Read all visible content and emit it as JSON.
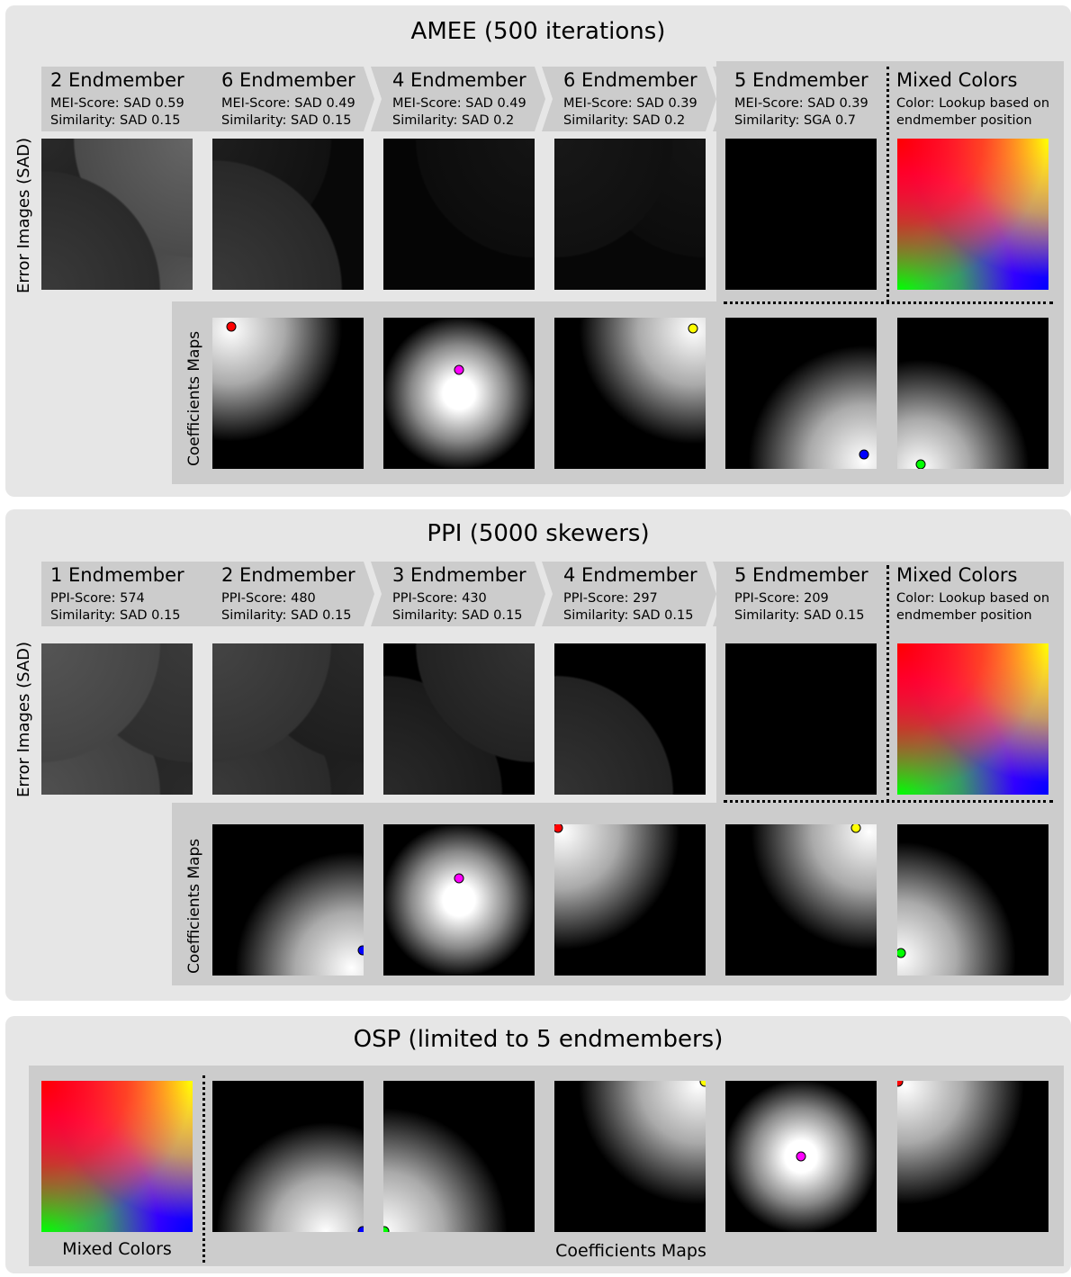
{
  "panels": {
    "amee": {
      "title": "AMEE (500 iterations)",
      "steps": [
        {
          "heading": "2 Endmember",
          "line1": "MEI-Score: SAD 0.59",
          "line2": "Similarity: SAD 0.15"
        },
        {
          "heading": "6 Endmember",
          "line1": "MEI-Score: SAD 0.49",
          "line2": "Similarity: SAD 0.15"
        },
        {
          "heading": "4 Endmember",
          "line1": "MEI-Score: SAD 0.49",
          "line2": "Similarity: SAD 0.2"
        },
        {
          "heading": "6 Endmember",
          "line1": "MEI-Score: SAD 0.39",
          "line2": "Similarity: SAD 0.2"
        },
        {
          "heading": "5 Endmember",
          "line1": "MEI-Score: SAD 0.39",
          "line2": "Similarity: SGA 0.7"
        },
        {
          "heading": "Mixed Colors",
          "line1": "Color: Lookup based on",
          "line2": "endmember position"
        }
      ],
      "error_label": "Error Images (SAD)",
      "coef_label": "Coefficients Maps",
      "coef_dots": [
        "red",
        "magenta",
        "yellow",
        "blue",
        "green"
      ]
    },
    "ppi": {
      "title": "PPI (5000 skewers)",
      "steps": [
        {
          "heading": "1 Endmember",
          "line1": "PPI-Score: 574",
          "line2": "Similarity: SAD 0.15"
        },
        {
          "heading": "2 Endmember",
          "line1": "PPI-Score: 480",
          "line2": "Similarity: SAD 0.15"
        },
        {
          "heading": "3 Endmember",
          "line1": "PPI-Score: 430",
          "line2": "Similarity: SAD 0.15"
        },
        {
          "heading": "4 Endmember",
          "line1": "PPI-Score: 297",
          "line2": "Similarity: SAD 0.15"
        },
        {
          "heading": "5 Endmember",
          "line1": "PPI-Score: 209",
          "line2": "Similarity: SAD 0.15"
        },
        {
          "heading": "Mixed Colors",
          "line1": "Color: Lookup based on",
          "line2": "endmember position"
        }
      ],
      "error_label": "Error Images (SAD)",
      "coef_label": "Coefficients Maps",
      "coef_dots": [
        "blue",
        "magenta",
        "red",
        "yellow",
        "green"
      ]
    },
    "osp": {
      "title": "OSP (limited to 5 endmembers)",
      "mixed_label": "Mixed Colors",
      "coef_label": "Coefficients Maps",
      "coef_dots": [
        "blue",
        "green",
        "yellow",
        "magenta",
        "red"
      ]
    }
  },
  "colors": {
    "panel_bg": "#e6e6e6",
    "bar_bg": "#cccccc",
    "red": "#ff0000",
    "yellow": "#ffff00",
    "green": "#00ff00",
    "blue": "#0000ff",
    "magenta": "#ff00ff"
  }
}
